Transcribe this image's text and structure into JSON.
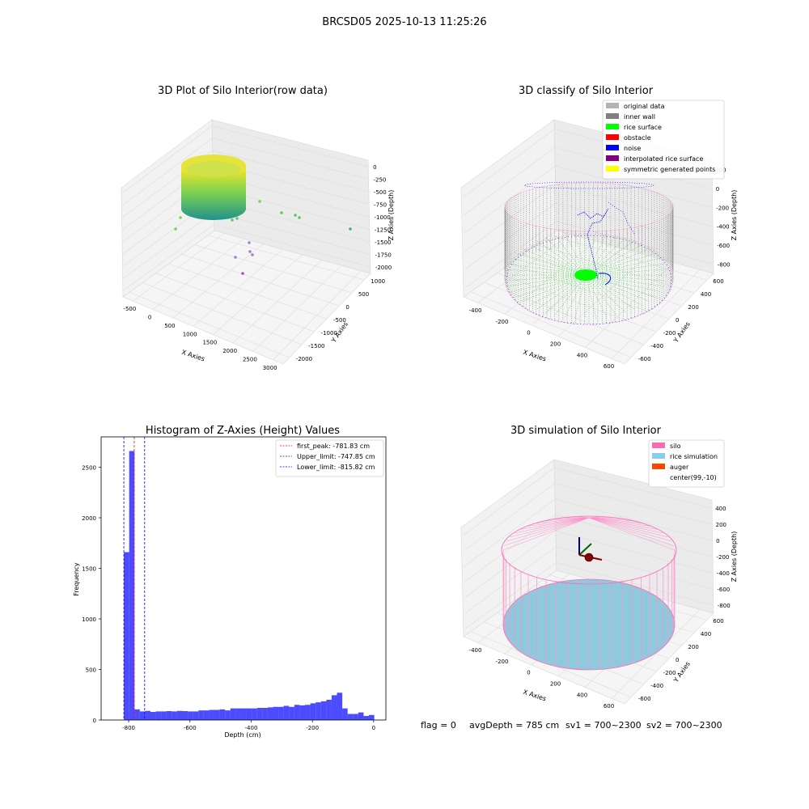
{
  "suptitle": "BRCSD05 2025-10-13 11:25:26",
  "footer": {
    "flag": "flag = 0",
    "avg_depth": "avgDepth = 785 cm",
    "sv1": "sv1 = 700~2300",
    "sv2": "sv2 = 700~2300"
  },
  "panels": {
    "raw": {
      "title": "3D Plot of Silo Interior(row data)",
      "xlabel": "X Axies",
      "ylabel": "Y Axies",
      "zlabel": "Z Axies (Depth)",
      "xticks": [
        "-500",
        "0",
        "500",
        "1000",
        "1500",
        "2000",
        "2500",
        "3000"
      ],
      "yticks": [
        "-2000",
        "-1500",
        "-1000",
        "-500",
        "0",
        "500",
        "1000"
      ],
      "zticks": [
        "0",
        "-250",
        "-500",
        "-750",
        "-1000",
        "-1250",
        "-1500",
        "-1750",
        "-2000"
      ]
    },
    "classify": {
      "title": "3D classify of Silo Interior",
      "xlabel": "X Axies",
      "ylabel": "Y Axies",
      "zlabel": "Z Axies (Depth)",
      "xticks": [
        "-400",
        "-200",
        "0",
        "200",
        "400",
        "600"
      ],
      "yticks": [
        "-600",
        "-400",
        "-200",
        "0",
        "200",
        "400",
        "600"
      ],
      "zticks": [
        "200",
        "0",
        "-200",
        "-400",
        "-600",
        "-800"
      ],
      "legend": [
        {
          "label": "original data",
          "color": "#b3b3b3"
        },
        {
          "label": "inner wall",
          "color": "#808080"
        },
        {
          "label": "rice surface",
          "color": "#00ff00"
        },
        {
          "label": "obstacle",
          "color": "#ff0000"
        },
        {
          "label": "noise",
          "color": "#0000ff"
        },
        {
          "label": "interpolated rice surface",
          "color": "#800080"
        },
        {
          "label": "symmetric generated points",
          "color": "#ffff00"
        }
      ]
    },
    "histogram": {
      "title": "Histogram of Z-Axies (Height) Values",
      "xlabel": "Depth (cm)",
      "ylabel": "Frequency",
      "xticks": [
        "-800",
        "-600",
        "-400",
        "-200",
        "0"
      ],
      "yticks": [
        "0",
        "500",
        "1000",
        "1500",
        "2000",
        "2500"
      ],
      "legend": [
        {
          "label": "first_peak: -781.83 cm",
          "color": "#ff0000"
        },
        {
          "label": "Upper_limit: -747.85 cm",
          "color": "#0000ff"
        },
        {
          "label": "Lower_limit: -815.82 cm",
          "color": "#0000ff"
        }
      ]
    },
    "simulation": {
      "title": "3D simulation of Silo Interior",
      "xlabel": "X Axies",
      "ylabel": "Y Axies",
      "zlabel": "Z Axies (Depth)",
      "xticks": [
        "-400",
        "-200",
        "0",
        "200",
        "400",
        "600"
      ],
      "yticks": [
        "-600",
        "-400",
        "-200",
        "0",
        "200",
        "400",
        "600"
      ],
      "zticks": [
        "400",
        "200",
        "0",
        "-200",
        "-400",
        "-600",
        "-800"
      ],
      "legend": [
        {
          "label": "silo",
          "color": "#ff69b4"
        },
        {
          "label": "rice simulation",
          "color": "#87ceeb"
        },
        {
          "label": "auger",
          "color": "#ff4500"
        },
        {
          "label": "center(99,-10)",
          "color": ""
        }
      ]
    }
  },
  "chart_data": {
    "type": "bar",
    "title": "Histogram of Z-Axies (Height) Values",
    "xlabel": "Depth (cm)",
    "ylabel": "Frequency",
    "xlim": [
      -890,
      40
    ],
    "ylim": [
      0,
      2800
    ],
    "bin_width": 17.4,
    "bin_edges_start": -815.82,
    "values": [
      1660,
      2660,
      105,
      85,
      90,
      80,
      85,
      85,
      88,
      85,
      90,
      88,
      85,
      85,
      95,
      95,
      100,
      100,
      105,
      95,
      115,
      115,
      115,
      115,
      115,
      120,
      120,
      125,
      130,
      130,
      140,
      130,
      150,
      145,
      150,
      165,
      175,
      185,
      200,
      245,
      270,
      115,
      60,
      60,
      75,
      40,
      50
    ],
    "vlines": [
      {
        "name": "first_peak",
        "x": -781.83,
        "color": "#ff0000"
      },
      {
        "name": "Upper_limit",
        "x": -747.85,
        "color": "#0000ff"
      },
      {
        "name": "Lower_limit",
        "x": -815.82,
        "color": "#0000ff"
      }
    ],
    "bar_color": "#0000ff"
  }
}
